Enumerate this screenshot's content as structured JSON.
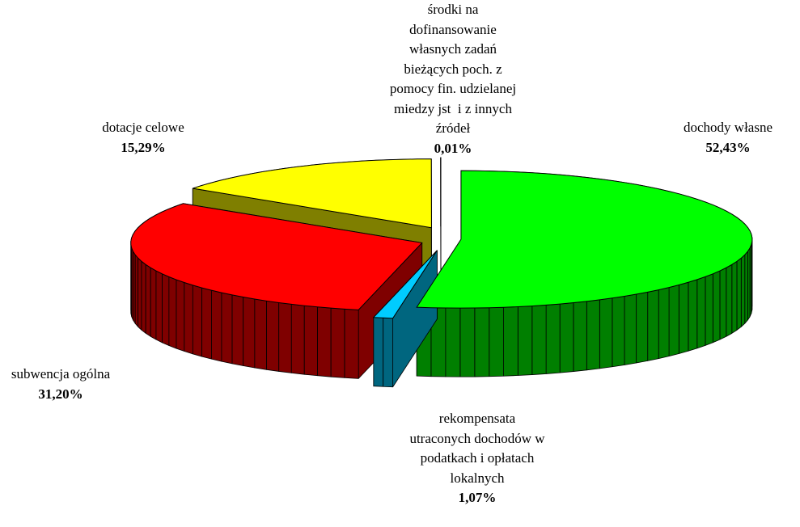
{
  "chart_data": {
    "type": "pie",
    "categories": [
      "dochody własne",
      "rekompensata\nutraconych dochodów w\npodatkach i opłatach\nlokalnych",
      "subwencja ogólna",
      "dotacje celowe",
      "środki na\ndofinansowanie\nwłasnych zadań\nbieżących poch. z\npomocy fin. udzielanej\nmiedzy jst  i z innych\nźródeł"
    ],
    "values": [
      52.43,
      1.07,
      31.2,
      15.29,
      0.01
    ],
    "value_labels": [
      "52,43%",
      "1,07%",
      "31,20%",
      "15,29%",
      "0,01%"
    ],
    "colors": [
      "#00ff00",
      "#00ccff",
      "#ff0000",
      "#ffff00",
      "#800000"
    ]
  }
}
